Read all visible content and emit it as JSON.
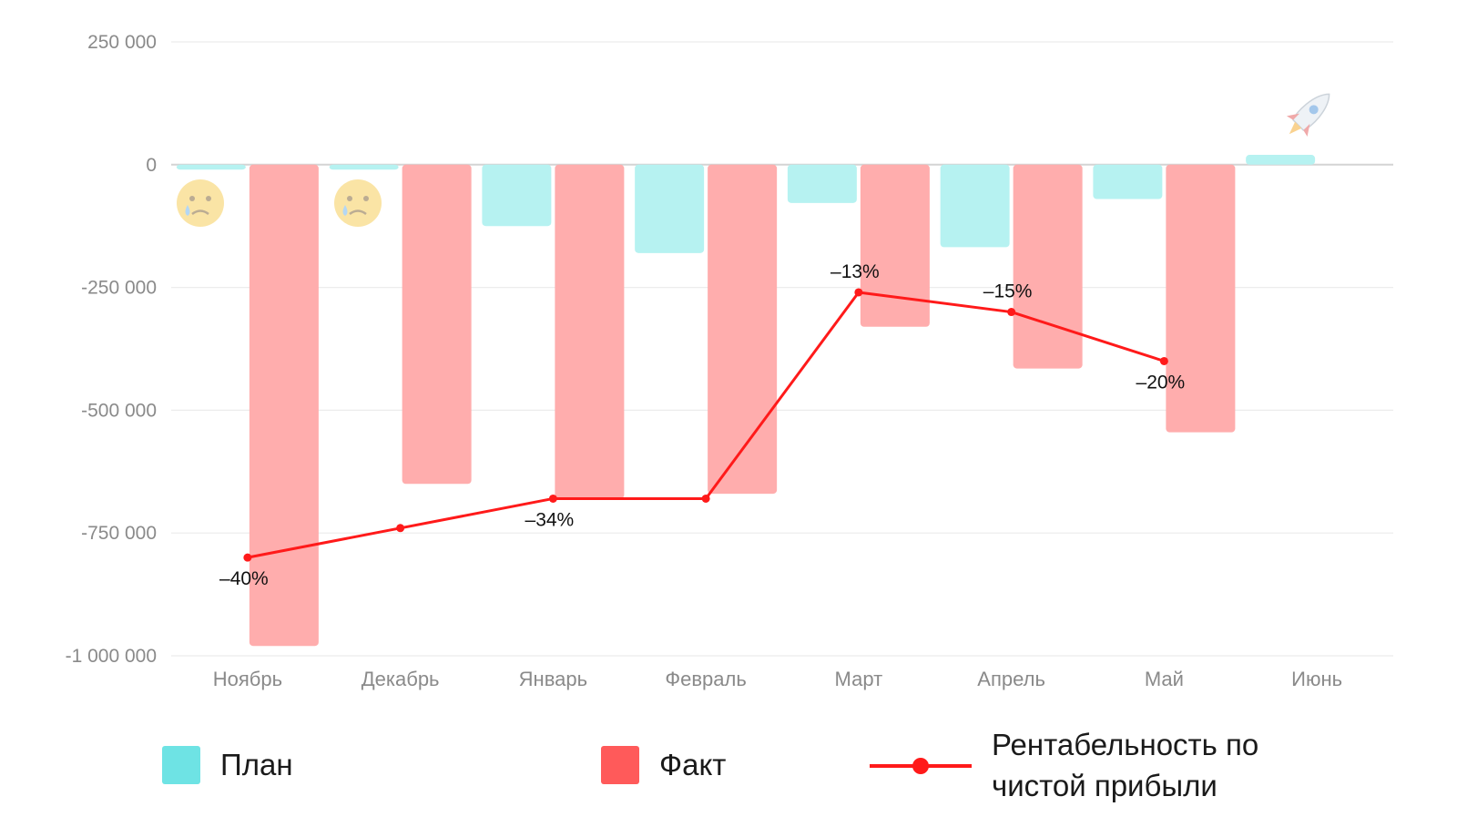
{
  "chart_data": {
    "type": "bar",
    "categories": [
      "Ноябрь",
      "Декабрь",
      "Январь",
      "Февраль",
      "Март",
      "Апрель",
      "Май",
      "Июнь"
    ],
    "ylim": [
      -1000000,
      250000
    ],
    "yticks": [
      250000,
      0,
      -250000,
      -500000,
      -750000,
      -1000000
    ],
    "ytick_labels": [
      "250 000",
      "0",
      "-250 000",
      "-500 000",
      "-750 000",
      "-1 000 000"
    ],
    "grid": true,
    "legend_position": "bottom",
    "series": [
      {
        "name": "План",
        "type": "bar",
        "color": "#b6f2f1",
        "legend_color": "#6ee3e4",
        "values": [
          -10000,
          -10000,
          -125000,
          -180000,
          -78000,
          -168000,
          -70000,
          20000
        ]
      },
      {
        "name": "Факт",
        "type": "bar",
        "color": "#ffadad",
        "legend_color": "#ff5a5a",
        "values": [
          -980000,
          -650000,
          -680000,
          -670000,
          -330000,
          -415000,
          -545000,
          null
        ]
      },
      {
        "name": "Рентабельность по чистой прибыли",
        "type": "line",
        "color": "#ff1a1a",
        "values": [
          -40,
          -37,
          -34,
          -34,
          -13,
          -15,
          -20,
          null
        ],
        "labels": [
          "–40%",
          "",
          "–34%",
          "",
          "–13%",
          "–15%",
          "–20%",
          ""
        ]
      }
    ],
    "emoji": {
      "sad": "sad-tear-face-icon",
      "rocket": "rocket-icon"
    }
  },
  "legend": {
    "plan": "План",
    "fact": "Факт",
    "line_line1": "Рентабельность по",
    "line_line2": "чистой прибыли"
  }
}
